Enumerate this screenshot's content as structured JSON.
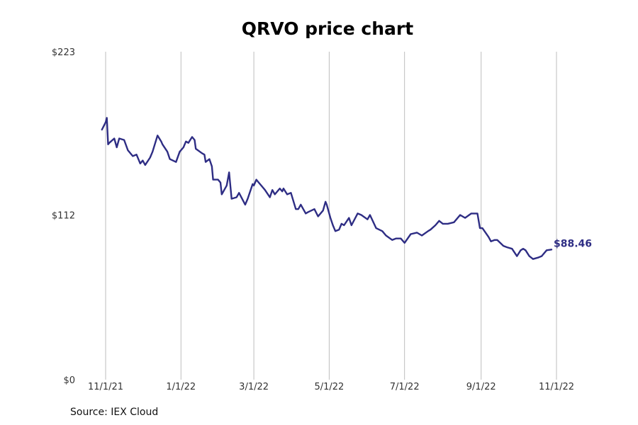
{
  "chart_data": {
    "type": "line",
    "title": "QRVO price chart",
    "source": "Source: IEX Cloud",
    "xlabel": "",
    "ylabel": "",
    "x_tick_labels": [
      "11/1/21",
      "1/1/22",
      "3/1/22",
      "5/1/22",
      "7/1/22",
      "9/1/22",
      "11/1/22"
    ],
    "y_tick_labels": [
      "$0",
      "$112",
      "$223"
    ],
    "ylim": [
      0,
      223
    ],
    "xlim": [
      "2021-10-18",
      "2022-12-15"
    ],
    "grid": "vertical",
    "line_color": "#2e2d84",
    "last_value_label": "$88.46",
    "series": [
      {
        "x": [
          "2021-10-29",
          "2021-11-01",
          "2021-11-02",
          "2021-11-03",
          "2021-11-04",
          "2021-11-08",
          "2021-11-10",
          "2021-11-12",
          "2021-11-16",
          "2021-11-19",
          "2021-11-23",
          "2021-11-26",
          "2021-11-29",
          "2021-12-01",
          "2021-12-03",
          "2021-12-07",
          "2021-12-09",
          "2021-12-13",
          "2021-12-16",
          "2021-12-17",
          "2021-12-21",
          "2021-12-23",
          "2021-12-28",
          "2021-12-31",
          "2022-01-03",
          "2022-01-05",
          "2022-01-07",
          "2022-01-10",
          "2022-01-12",
          "2022-01-13",
          "2022-01-18",
          "2022-01-20",
          "2022-01-21",
          "2022-01-24",
          "2022-01-26",
          "2022-01-27",
          "2022-01-31",
          "2022-02-02",
          "2022-02-03",
          "2022-02-07",
          "2022-02-09",
          "2022-02-11",
          "2022-02-15",
          "2022-02-17",
          "2022-02-22",
          "2022-02-24",
          "2022-02-28",
          "2022-03-01",
          "2022-03-03",
          "2022-03-04",
          "2022-03-08",
          "2022-03-10",
          "2022-03-14",
          "2022-03-16",
          "2022-03-18",
          "2022-03-22",
          "2022-03-24",
          "2022-03-25",
          "2022-03-28",
          "2022-03-31",
          "2022-04-04",
          "2022-04-06",
          "2022-04-08",
          "2022-04-12",
          "2022-04-14",
          "2022-04-19",
          "2022-04-22",
          "2022-04-26",
          "2022-04-28",
          "2022-04-29",
          "2022-05-02",
          "2022-05-04",
          "2022-05-06",
          "2022-05-09",
          "2022-05-11",
          "2022-05-13",
          "2022-05-17",
          "2022-05-19",
          "2022-05-24",
          "2022-05-27",
          "2022-06-01",
          "2022-06-03",
          "2022-06-08",
          "2022-06-13",
          "2022-06-16",
          "2022-06-21",
          "2022-06-24",
          "2022-06-28",
          "2022-07-01",
          "2022-07-06",
          "2022-07-11",
          "2022-07-15",
          "2022-07-20",
          "2022-07-22",
          "2022-07-26",
          "2022-07-29",
          "2022-08-01",
          "2022-08-05",
          "2022-08-10",
          "2022-08-15",
          "2022-08-19",
          "2022-08-24",
          "2022-08-29",
          "2022-08-31",
          "2022-09-02",
          "2022-09-07",
          "2022-09-09",
          "2022-09-12",
          "2022-09-14",
          "2022-09-19",
          "2022-09-22",
          "2022-09-26",
          "2022-09-30",
          "2022-10-03",
          "2022-10-05",
          "2022-10-07",
          "2022-10-10",
          "2022-10-13",
          "2022-10-17",
          "2022-10-20",
          "2022-10-24",
          "2022-10-28"
        ],
        "y": [
          170,
          175,
          178,
          160,
          161,
          164,
          158,
          164,
          163,
          156,
          152,
          153,
          147,
          149,
          146,
          151,
          155,
          166,
          162,
          160,
          155,
          150,
          148,
          155,
          158,
          162,
          161,
          165,
          163,
          157,
          154,
          153,
          148,
          150,
          145,
          136,
          136,
          134,
          126,
          132,
          141,
          123,
          124,
          127,
          119,
          123,
          133,
          132,
          136,
          135,
          131,
          129,
          124,
          129,
          126,
          130,
          128,
          130,
          126,
          127,
          116,
          116,
          119,
          113,
          114,
          116,
          111,
          115,
          121,
          119,
          110,
          105,
          101,
          102,
          106,
          105,
          110,
          105,
          113,
          112,
          109,
          112,
          103,
          101,
          98,
          95,
          96,
          96,
          93,
          99,
          100,
          98,
          101,
          102,
          105,
          108,
          106,
          106,
          107,
          112,
          110,
          113,
          113,
          103,
          103,
          97,
          94,
          95,
          95,
          91,
          90,
          89,
          84,
          88,
          89,
          88,
          84,
          82,
          83,
          84,
          88,
          88.46
        ]
      }
    ]
  }
}
